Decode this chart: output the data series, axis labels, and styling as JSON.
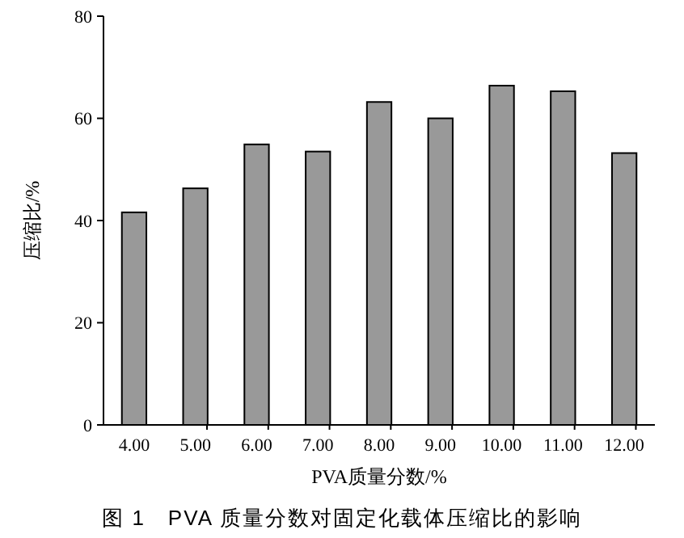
{
  "chart_data": {
    "type": "bar",
    "title": "图 1　PVA 质量分数对固定化载体压缩比的影响",
    "xlabel": "PVA质量分数/%",
    "ylabel": "压缩比/%",
    "categories": [
      "4.00",
      "5.00",
      "6.00",
      "7.00",
      "8.00",
      "9.00",
      "10.00",
      "11.00",
      "12.00"
    ],
    "values": [
      41.6,
      46.3,
      54.9,
      53.5,
      63.2,
      60.0,
      66.4,
      65.3,
      53.2
    ],
    "color": "#999999",
    "ylim": [
      0,
      80
    ],
    "yticks": [
      0,
      20,
      40,
      60,
      80
    ],
    "grid": false
  }
}
